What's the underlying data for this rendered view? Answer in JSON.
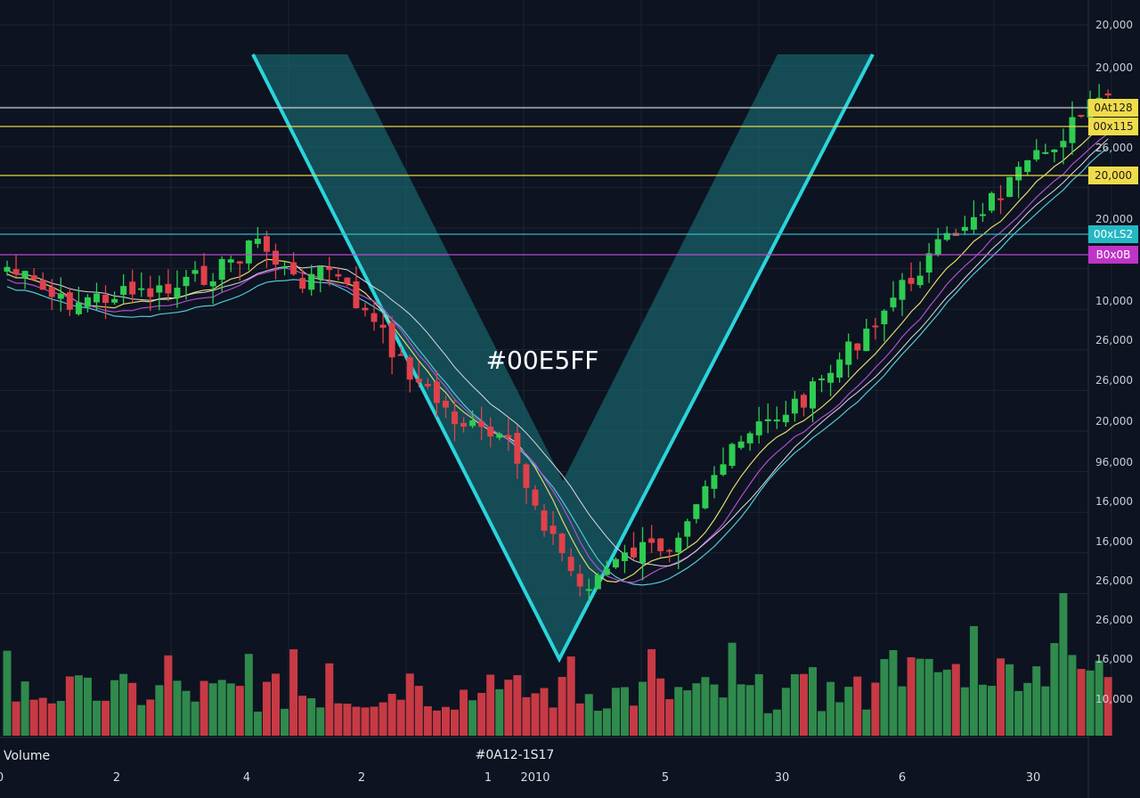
{
  "chart_data": {
    "type": "candlestick",
    "background": "#0d1320",
    "colors": {
      "up": "#2ecc52",
      "down": "#e0414a",
      "vol_up": "#2f8a4c",
      "vol_down": "#c73a44",
      "channel_fill": "#1b7a80",
      "channel_stroke": "#2ad4dc",
      "grid": "#1c2433",
      "ma_yellow": "#e2d96a",
      "ma_cyan": "#53c7d6",
      "ma_purple": "#b04fd0",
      "ma_white": "#d8dbe0"
    },
    "price_axis_labels": [
      "20,000",
      "20,000",
      "26,000",
      "20,000",
      "10,000",
      "26,000",
      "26,000",
      "20,000",
      "96,000",
      "16,000",
      "16,000",
      "26,000",
      "26,000",
      "16,000",
      "10,000"
    ],
    "time_axis_labels": [
      "0",
      "2",
      "4",
      "2",
      "1",
      "2010",
      "5",
      "30",
      "6",
      "30"
    ],
    "horizontal_levels": [
      {
        "label": "0At128",
        "color": "#f0dc4a",
        "line_color": "#c9ccd3"
      },
      {
        "label": "00x115",
        "color": "#f0dc4a",
        "line_color": "#e6d54a"
      },
      {
        "label": "20,000",
        "color": "#f0dc4a",
        "line_color": "#e6d54a"
      },
      {
        "label": "00xLS2",
        "color": "#23b8c4",
        "line_color": "#2fb8c4"
      },
      {
        "label": "B0x0B",
        "color": "#c033c8",
        "line_color": "#b64cc9"
      }
    ],
    "overlay_label": "#00E5FF",
    "volume_label": "Volume",
    "bottom_label": "#0A12-1S17",
    "candles": [],
    "volume": []
  }
}
